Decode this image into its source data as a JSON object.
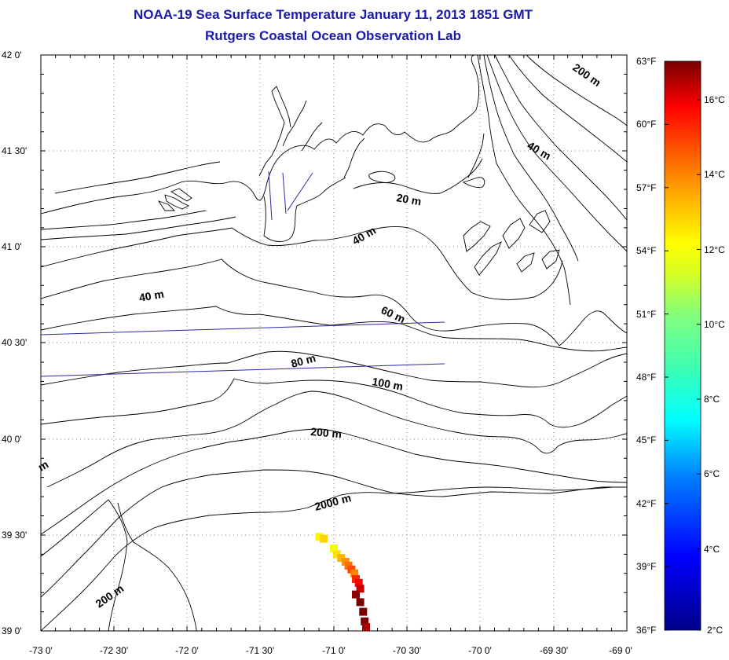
{
  "header": {
    "title": "NOAA-19 Sea Surface Temperature January 11, 2013 1851 GMT",
    "subtitle": "Rutgers Coastal Ocean Observation Lab"
  },
  "map": {
    "lon_labels": [
      "-73 0'",
      "-72 30'",
      "-72 0'",
      "-71 30'",
      "-71 0'",
      "-70 30'",
      "-70 0'",
      "-69 30'",
      "-69 0'"
    ],
    "lat_labels": [
      "42 0'",
      "41 30'",
      "41 0'",
      "40 30'",
      "40 0'",
      "39 30'",
      "39 0'"
    ],
    "contour_labels": [
      "200 m",
      "40 m",
      "20 m",
      "40 m",
      "40 m",
      "60 m",
      "80 m",
      "100 m",
      "200 m",
      "m",
      "2000 m",
      "200 m"
    ],
    "sst_pixels": [
      {
        "lon": -71.1,
        "lat": 39.49,
        "temp_c": 12.5
      },
      {
        "lon": -71.07,
        "lat": 39.48,
        "temp_c": 13.0
      },
      {
        "lon": -71.0,
        "lat": 39.43,
        "temp_c": 12.0
      },
      {
        "lon": -70.98,
        "lat": 39.4,
        "temp_c": 12.8
      },
      {
        "lon": -70.95,
        "lat": 39.38,
        "temp_c": 13.5
      },
      {
        "lon": -70.92,
        "lat": 39.36,
        "temp_c": 14.0
      },
      {
        "lon": -70.9,
        "lat": 39.34,
        "temp_c": 14.5
      },
      {
        "lon": -70.88,
        "lat": 39.32,
        "temp_c": 15.0
      },
      {
        "lon": -70.86,
        "lat": 39.3,
        "temp_c": 14.2
      },
      {
        "lon": -70.85,
        "lat": 39.27,
        "temp_c": 15.5
      },
      {
        "lon": -70.83,
        "lat": 39.25,
        "temp_c": 16.0
      },
      {
        "lon": -70.82,
        "lat": 39.22,
        "temp_c": 16.5
      },
      {
        "lon": -70.85,
        "lat": 39.19,
        "temp_c": 17.0
      },
      {
        "lon": -70.82,
        "lat": 39.15,
        "temp_c": 17.5
      },
      {
        "lon": -70.8,
        "lat": 39.1,
        "temp_c": 17.8
      },
      {
        "lon": -70.79,
        "lat": 39.05,
        "temp_c": 17.2
      },
      {
        "lon": -70.78,
        "lat": 39.02,
        "temp_c": 16.8
      }
    ]
  },
  "colorbar": {
    "f_labels": [
      "63°F",
      "60°F",
      "57°F",
      "54°F",
      "51°F",
      "48°F",
      "45°F",
      "42°F",
      "39°F",
      "36°F"
    ],
    "c_labels": [
      "16°C",
      "14°C",
      "12°C",
      "10°C",
      "8°C",
      "6°C",
      "4°C",
      "2°C"
    ],
    "range_c": [
      2,
      17.2
    ]
  }
}
